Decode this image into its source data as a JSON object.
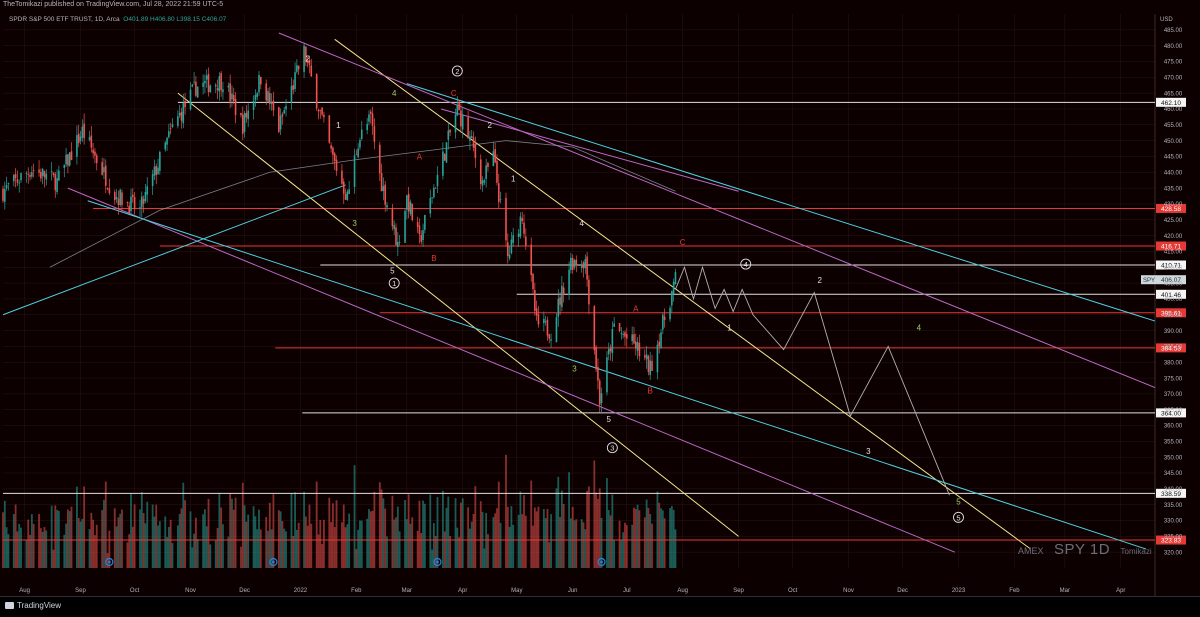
{
  "header": {
    "published_by": "TheTomikazi published on TradingView.com, Jul 28, 2022 21:59 UTC-5",
    "title": "SPDR S&P 500 ETF TRUST, 1D, Arca",
    "ohlc": "O401.89  H406.80  L398.15  C406.07"
  },
  "footer": {
    "brand": "TradingView"
  },
  "watermark": {
    "exchange": "AMEX",
    "symbol": "SPY 1D",
    "author": "Tomikazi"
  },
  "colors": {
    "background": "#0d0000",
    "grid": "#2a1515",
    "up": "#26a69a",
    "down": "#ef5350",
    "red_level": "#e53935",
    "white_level": "#e0e0e0",
    "yellow_channel": "#f0e68c",
    "purple_channel": "#ba68c8",
    "cyan_channel": "#4dd0e1",
    "ma": "#90a4ae",
    "projection": "#b0b0b0"
  },
  "chart_data": {
    "type": "candlestick",
    "title": "SPDR S&P 500 ETF TRUST, 1D, Arca",
    "price_axis": {
      "currency": "USD",
      "range": [
        315,
        490
      ],
      "ticks": [
        320,
        325,
        330,
        335,
        340,
        345,
        350,
        355,
        360,
        365,
        370,
        375,
        380,
        385,
        390,
        395,
        400,
        405,
        410,
        415,
        420,
        425,
        430,
        435,
        440,
        445,
        450,
        455,
        460,
        465,
        470,
        475,
        480,
        485
      ]
    },
    "time_axis": {
      "range": [
        "2021-07-20",
        "2023-04-20"
      ],
      "labels": [
        {
          "date": "2021-08-01",
          "text": "Aug"
        },
        {
          "date": "2021-09-01",
          "text": "Sep"
        },
        {
          "date": "2021-10-01",
          "text": "Oct"
        },
        {
          "date": "2021-11-01",
          "text": "Nov"
        },
        {
          "date": "2021-12-01",
          "text": "Dec"
        },
        {
          "date": "2022-01-01",
          "text": "2022"
        },
        {
          "date": "2022-02-01",
          "text": "Feb"
        },
        {
          "date": "2022-03-01",
          "text": "Mar"
        },
        {
          "date": "2022-04-01",
          "text": "Apr"
        },
        {
          "date": "2022-05-01",
          "text": "May"
        },
        {
          "date": "2022-06-01",
          "text": "Jun"
        },
        {
          "date": "2022-07-01",
          "text": "Jul"
        },
        {
          "date": "2022-08-01",
          "text": "Aug"
        },
        {
          "date": "2022-09-01",
          "text": "Sep"
        },
        {
          "date": "2022-10-01",
          "text": "Oct"
        },
        {
          "date": "2022-11-01",
          "text": "Nov"
        },
        {
          "date": "2022-12-01",
          "text": "Dec"
        },
        {
          "date": "2023-01-01",
          "text": "2023"
        },
        {
          "date": "2023-02-01",
          "text": "Feb"
        },
        {
          "date": "2023-03-01",
          "text": "Mar"
        },
        {
          "date": "2023-04-01",
          "text": "Apr"
        }
      ]
    },
    "price_path": [
      [
        "2021-07-20",
        434
      ],
      [
        "2021-08-05",
        441
      ],
      [
        "2021-08-19",
        437
      ],
      [
        "2021-09-02",
        453
      ],
      [
        "2021-09-20",
        433
      ],
      [
        "2021-10-04",
        428
      ],
      [
        "2021-10-22",
        454
      ],
      [
        "2021-11-04",
        467
      ],
      [
        "2021-11-19",
        469
      ],
      [
        "2021-11-30",
        455
      ],
      [
        "2021-12-10",
        470
      ],
      [
        "2021-12-20",
        454
      ],
      [
        "2022-01-03",
        478
      ],
      [
        "2022-01-10",
        463
      ],
      [
        "2022-01-18",
        446
      ],
      [
        "2022-01-27",
        432
      ],
      [
        "2022-02-02",
        450
      ],
      [
        "2022-02-09",
        457
      ],
      [
        "2022-02-14",
        439
      ],
      [
        "2022-02-24",
        417
      ],
      [
        "2022-03-01",
        432
      ],
      [
        "2022-03-08",
        418
      ],
      [
        "2022-03-15",
        433
      ],
      [
        "2022-03-29",
        460
      ],
      [
        "2022-04-06",
        449
      ],
      [
        "2022-04-12",
        437
      ],
      [
        "2022-04-18",
        445
      ],
      [
        "2022-04-26",
        413
      ],
      [
        "2022-05-04",
        427
      ],
      [
        "2022-05-12",
        392
      ],
      [
        "2022-05-20",
        390
      ],
      [
        "2022-05-31",
        412
      ],
      [
        "2022-06-08",
        412
      ],
      [
        "2022-06-16",
        368
      ],
      [
        "2022-06-24",
        391
      ],
      [
        "2022-07-06",
        385
      ],
      [
        "2022-07-14",
        378
      ],
      [
        "2022-07-28",
        406
      ]
    ],
    "moving_average_path": [
      [
        "2021-08-15",
        410
      ],
      [
        "2021-10-15",
        428
      ],
      [
        "2021-12-15",
        440
      ],
      [
        "2022-02-01",
        444
      ],
      [
        "2022-03-15",
        447
      ],
      [
        "2022-04-25",
        450
      ],
      [
        "2022-06-01",
        448
      ],
      [
        "2022-07-28",
        434
      ]
    ],
    "last_price": {
      "value": 406.07,
      "label": "SPY"
    },
    "levels": [
      {
        "value": 462.1,
        "label": "462.10",
        "color": "white",
        "start": "2021-10-25"
      },
      {
        "value": 428.58,
        "label": "428.58",
        "color": "red",
        "start": "2021-09-08"
      },
      {
        "value": 416.71,
        "label": "416.71",
        "color": "red",
        "start": "2021-10-15"
      },
      {
        "value": 410.71,
        "label": "410.71",
        "color": "white",
        "start": "2022-01-12"
      },
      {
        "value": 401.46,
        "label": "401.46",
        "color": "white",
        "start": "2022-05-01"
      },
      {
        "value": 395.61,
        "label": "395.61",
        "color": "red",
        "start": "2022-02-14"
      },
      {
        "value": 384.53,
        "label": "384.53",
        "color": "red",
        "start": "2021-12-18"
      },
      {
        "value": 364.0,
        "label": "364.00",
        "color": "white",
        "start": "2022-01-02"
      },
      {
        "value": 338.59,
        "label": "338.59",
        "color": "white",
        "start": "2021-07-15"
      },
      {
        "value": 323.83,
        "label": "323.83",
        "color": "red",
        "start": "2021-07-15"
      }
    ],
    "channels": [
      {
        "color": "yellow",
        "from": [
          "2021-10-25",
          465
        ],
        "to": [
          "2022-09-01",
          325
        ]
      },
      {
        "color": "yellow",
        "from": [
          "2022-01-20",
          482
        ],
        "to": [
          "2023-02-10",
          321
        ]
      },
      {
        "color": "purple",
        "from": [
          "2021-12-20",
          484
        ],
        "to": [
          "2023-04-20",
          372
        ]
      },
      {
        "color": "purple",
        "from": [
          "2021-08-25",
          435
        ],
        "to": [
          "2022-12-30",
          320
        ]
      },
      {
        "color": "purple",
        "from": [
          "2022-03-20",
          460
        ],
        "to": [
          "2022-09-01",
          434
        ]
      },
      {
        "color": "cyan",
        "from": [
          "2022-03-01",
          468
        ],
        "to": [
          "2023-04-20",
          393
        ]
      },
      {
        "color": "cyan",
        "from": [
          "2021-09-05",
          431
        ],
        "to": [
          "2023-04-15",
          321
        ]
      },
      {
        "color": "cyan",
        "from": [
          "2021-07-20",
          395
        ],
        "to": [
          "2022-01-26",
          436
        ]
      }
    ],
    "projection": [
      [
        "2022-07-28",
        403
      ],
      [
        "2022-08-02",
        410
      ],
      [
        "2022-08-07",
        400
      ],
      [
        "2022-08-12",
        410
      ],
      [
        "2022-08-19",
        397
      ],
      [
        "2022-08-24",
        403
      ],
      [
        "2022-08-29",
        396
      ],
      [
        "2022-09-03",
        403
      ],
      [
        "2022-09-09",
        395
      ],
      [
        "2022-09-26",
        384
      ],
      [
        "2022-10-13",
        402
      ],
      [
        "2022-11-02",
        363
      ],
      [
        "2022-11-23",
        385
      ],
      [
        "2022-12-27",
        338
      ]
    ],
    "wave_labels": [
      {
        "text": "2",
        "date": "2022-01-05",
        "price": 476,
        "color": "#e0e0e0"
      },
      {
        "text": "1",
        "date": "2022-01-22",
        "price": 455,
        "color": "#e0e0e0"
      },
      {
        "text": "3",
        "date": "2022-01-31",
        "price": 424,
        "color": "#9ccc65"
      },
      {
        "text": "4",
        "date": "2022-02-22",
        "price": 465,
        "color": "#9ccc65"
      },
      {
        "text": "5",
        "date": "2022-02-21",
        "price": 409,
        "color": "#e0e0e0"
      },
      {
        "text": "1",
        "date": "2022-02-22",
        "price": 405,
        "color": "#e0e0e0",
        "circle": true
      },
      {
        "text": "A",
        "date": "2022-03-08",
        "price": 445,
        "color": "#e53935"
      },
      {
        "text": "B",
        "date": "2022-03-16",
        "price": 413,
        "color": "#e53935"
      },
      {
        "text": "C",
        "date": "2022-03-27",
        "price": 465,
        "color": "#e53935"
      },
      {
        "text": "2",
        "date": "2022-03-29",
        "price": 472,
        "color": "#e0e0e0",
        "circle": true
      },
      {
        "text": "2",
        "date": "2022-04-16",
        "price": 455,
        "color": "#e0e0e0"
      },
      {
        "text": "1",
        "date": "2022-04-29",
        "price": 438,
        "color": "#e0e0e0"
      },
      {
        "text": "4",
        "date": "2022-06-06",
        "price": 424,
        "color": "#e0e0e0"
      },
      {
        "text": "3",
        "date": "2022-06-02",
        "price": 378,
        "color": "#9ccc65"
      },
      {
        "text": "5",
        "date": "2022-06-21",
        "price": 362,
        "color": "#e0e0e0"
      },
      {
        "text": "3",
        "date": "2022-06-23",
        "price": 353,
        "color": "#e0e0e0",
        "circle": true
      },
      {
        "text": "A",
        "date": "2022-07-06",
        "price": 397,
        "color": "#e53935"
      },
      {
        "text": "B",
        "date": "2022-07-14",
        "price": 371,
        "color": "#e53935"
      },
      {
        "text": "C",
        "date": "2022-08-01",
        "price": 418,
        "color": "#e53935"
      },
      {
        "text": "4",
        "date": "2022-09-05",
        "price": 411,
        "color": "#e0e0e0",
        "circle": true
      },
      {
        "text": "1",
        "date": "2022-08-27",
        "price": 391,
        "color": "#e0e0e0"
      },
      {
        "text": "2",
        "date": "2022-10-16",
        "price": 406,
        "color": "#e0e0e0"
      },
      {
        "text": "3",
        "date": "2022-11-12",
        "price": 352,
        "color": "#e0e0e0"
      },
      {
        "text": "4",
        "date": "2022-12-10",
        "price": 391,
        "color": "#9ccc65"
      },
      {
        "text": "5",
        "date": "2023-01-01",
        "price": 336,
        "color": "#9ccc65"
      },
      {
        "text": "5",
        "date": "2023-01-01",
        "price": 331,
        "color": "#e0e0e0",
        "circle": true
      }
    ]
  }
}
